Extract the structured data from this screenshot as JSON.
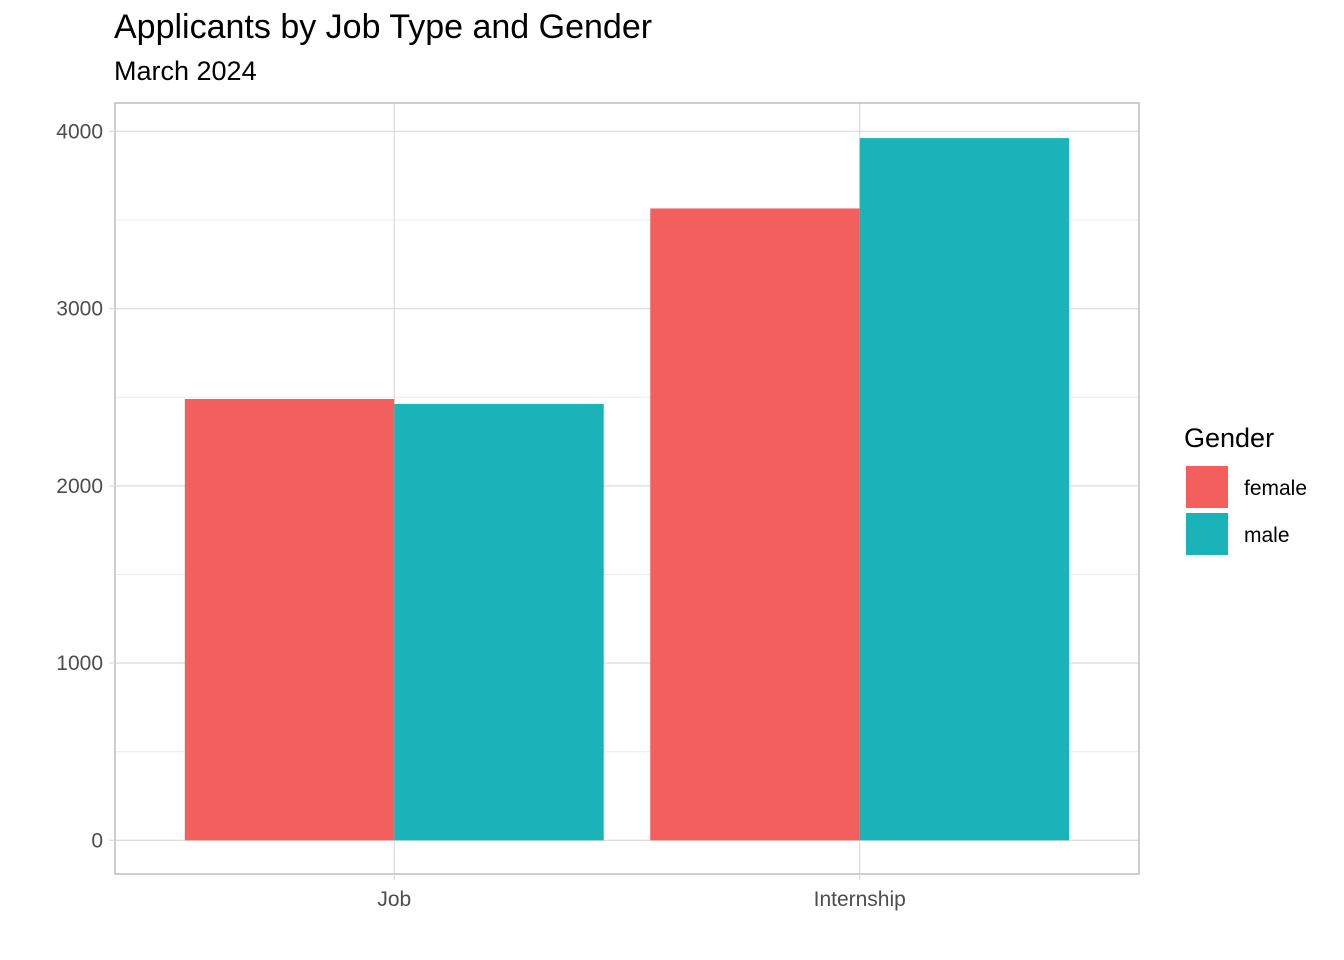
{
  "chart_data": {
    "type": "bar",
    "title": "Applicants by Job Type and Gender",
    "subtitle": "March 2024",
    "categories": [
      "Job",
      "Internship"
    ],
    "series": [
      {
        "name": "female",
        "values": [
          2490,
          3565
        ],
        "color": "#F25F5C"
      },
      {
        "name": "male",
        "values": [
          2462,
          3962
        ],
        "color": "#19B3B8"
      }
    ],
    "ylim": [
      -190,
      4160
    ],
    "yticks": [
      0,
      1000,
      2000,
      3000,
      4000
    ],
    "yticks_minor": [
      500,
      1500,
      2500,
      3500
    ],
    "xlabel": "",
    "ylabel": "",
    "grid": true,
    "legend": {
      "title": "Gender",
      "position": "right",
      "entries": [
        "female",
        "male"
      ]
    },
    "colors": {
      "panel_border": "#b3b3b3",
      "grid": "#dedede",
      "grid_minor": "#ececec",
      "axis_text": "#4d4d4d"
    }
  }
}
